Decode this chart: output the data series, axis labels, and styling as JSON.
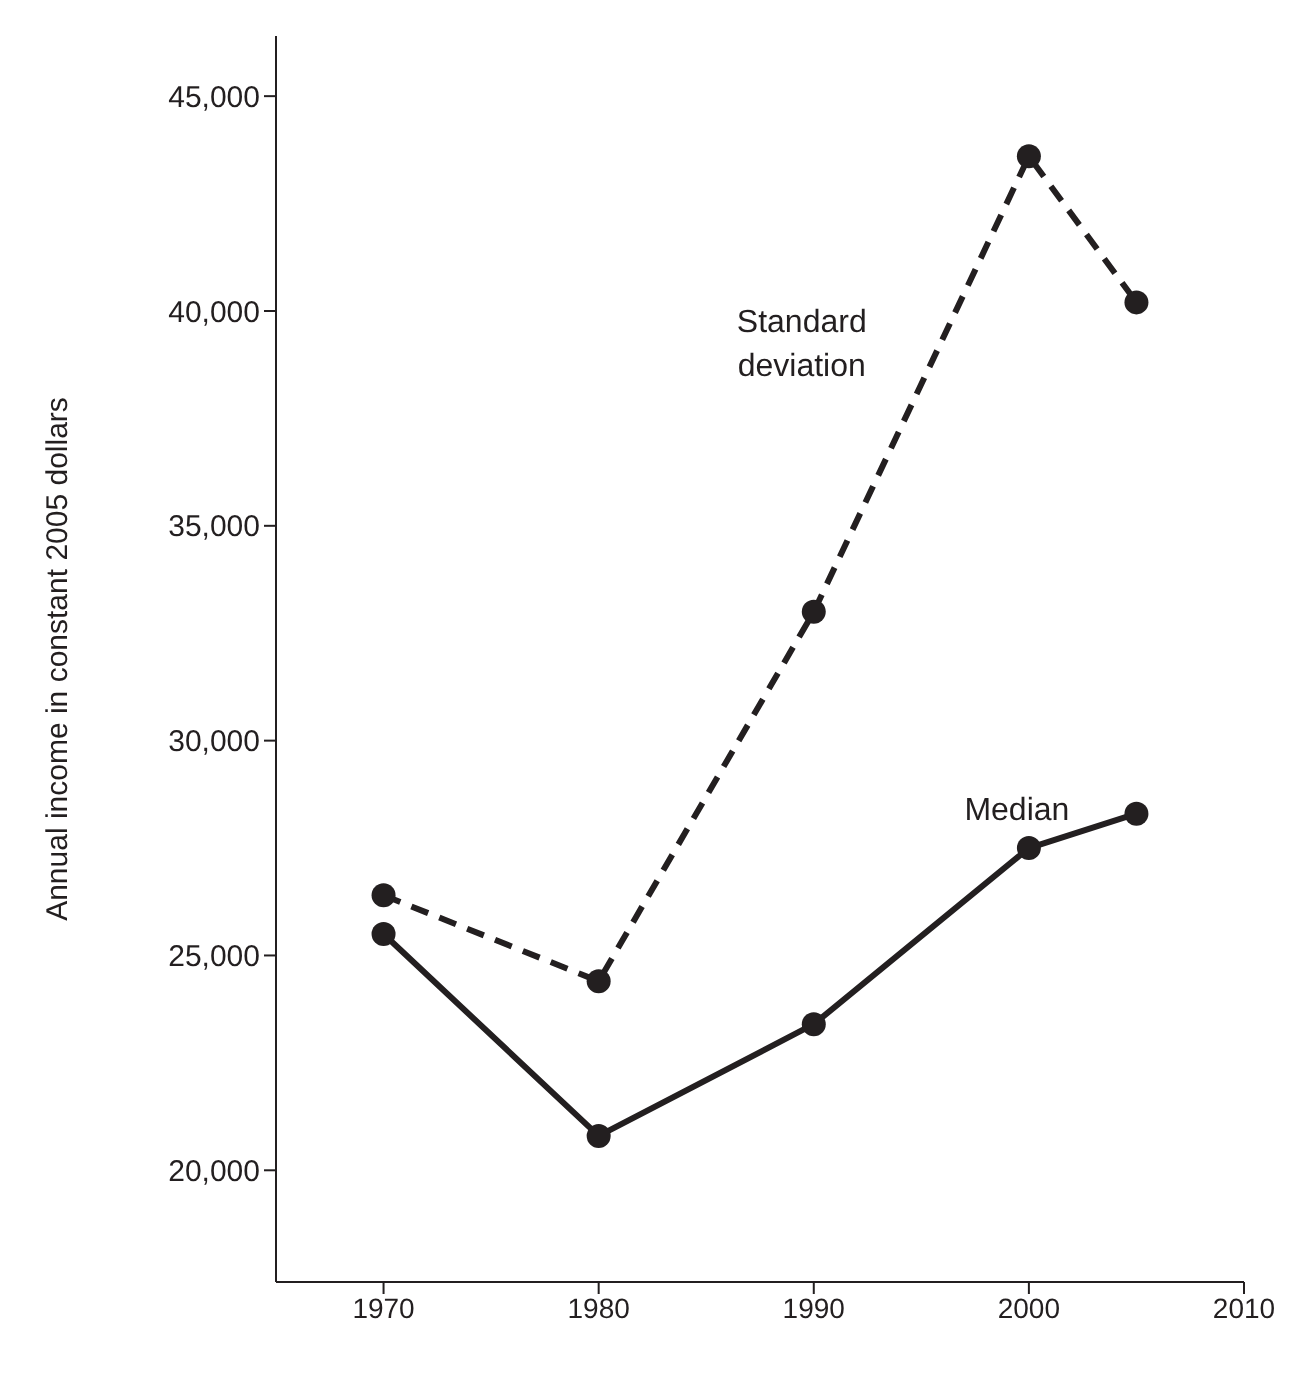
{
  "chart_data": {
    "type": "line",
    "ylabel": "Annual income in constant 2005 dollars",
    "x": [
      1970,
      1980,
      1990,
      2000,
      2005
    ],
    "series": [
      {
        "name": "Standard deviation",
        "color": "#231f20",
        "line_style": "dashed",
        "values": [
          26400,
          24400,
          33000,
          43600,
          40200
        ]
      },
      {
        "name": "Median",
        "color": "#231f20",
        "line_style": "solid",
        "values": [
          25500,
          20800,
          23400,
          27500,
          28300
        ]
      }
    ],
    "marker": "circle",
    "xlim": [
      1965,
      2010
    ],
    "xticks": [
      1970,
      1980,
      1990,
      2000,
      2010
    ],
    "ylim": [
      17400,
      46400
    ],
    "yticks": [
      {
        "value": 20000,
        "label": "20,000"
      },
      {
        "value": 25000,
        "label": "25,000"
      },
      {
        "value": 30000,
        "label": "30,000"
      },
      {
        "value": 35000,
        "label": "35,000"
      },
      {
        "value": 40000,
        "label": "40,000"
      },
      {
        "value": 45000,
        "label": "45,000"
      }
    ]
  }
}
